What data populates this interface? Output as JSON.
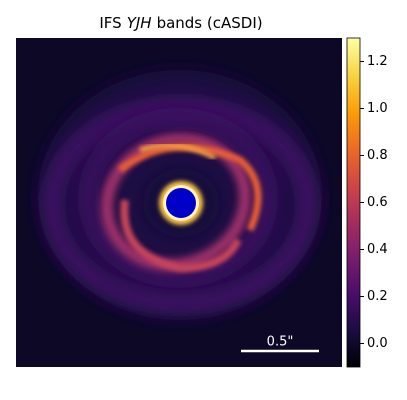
{
  "title": [
    "IFS",
    "YJH",
    "bands (cASDI)"
  ],
  "colorbar": {
    "lim": [
      -0.1,
      1.3
    ],
    "ticks": [
      {
        "value": 0,
        "label": "0.0"
      },
      0.2,
      0.4,
      0.6,
      0.8,
      {
        "value": 1,
        "label": "1.0"
      },
      1.2
    ]
  },
  "scale_bar": "0.5\""
}
